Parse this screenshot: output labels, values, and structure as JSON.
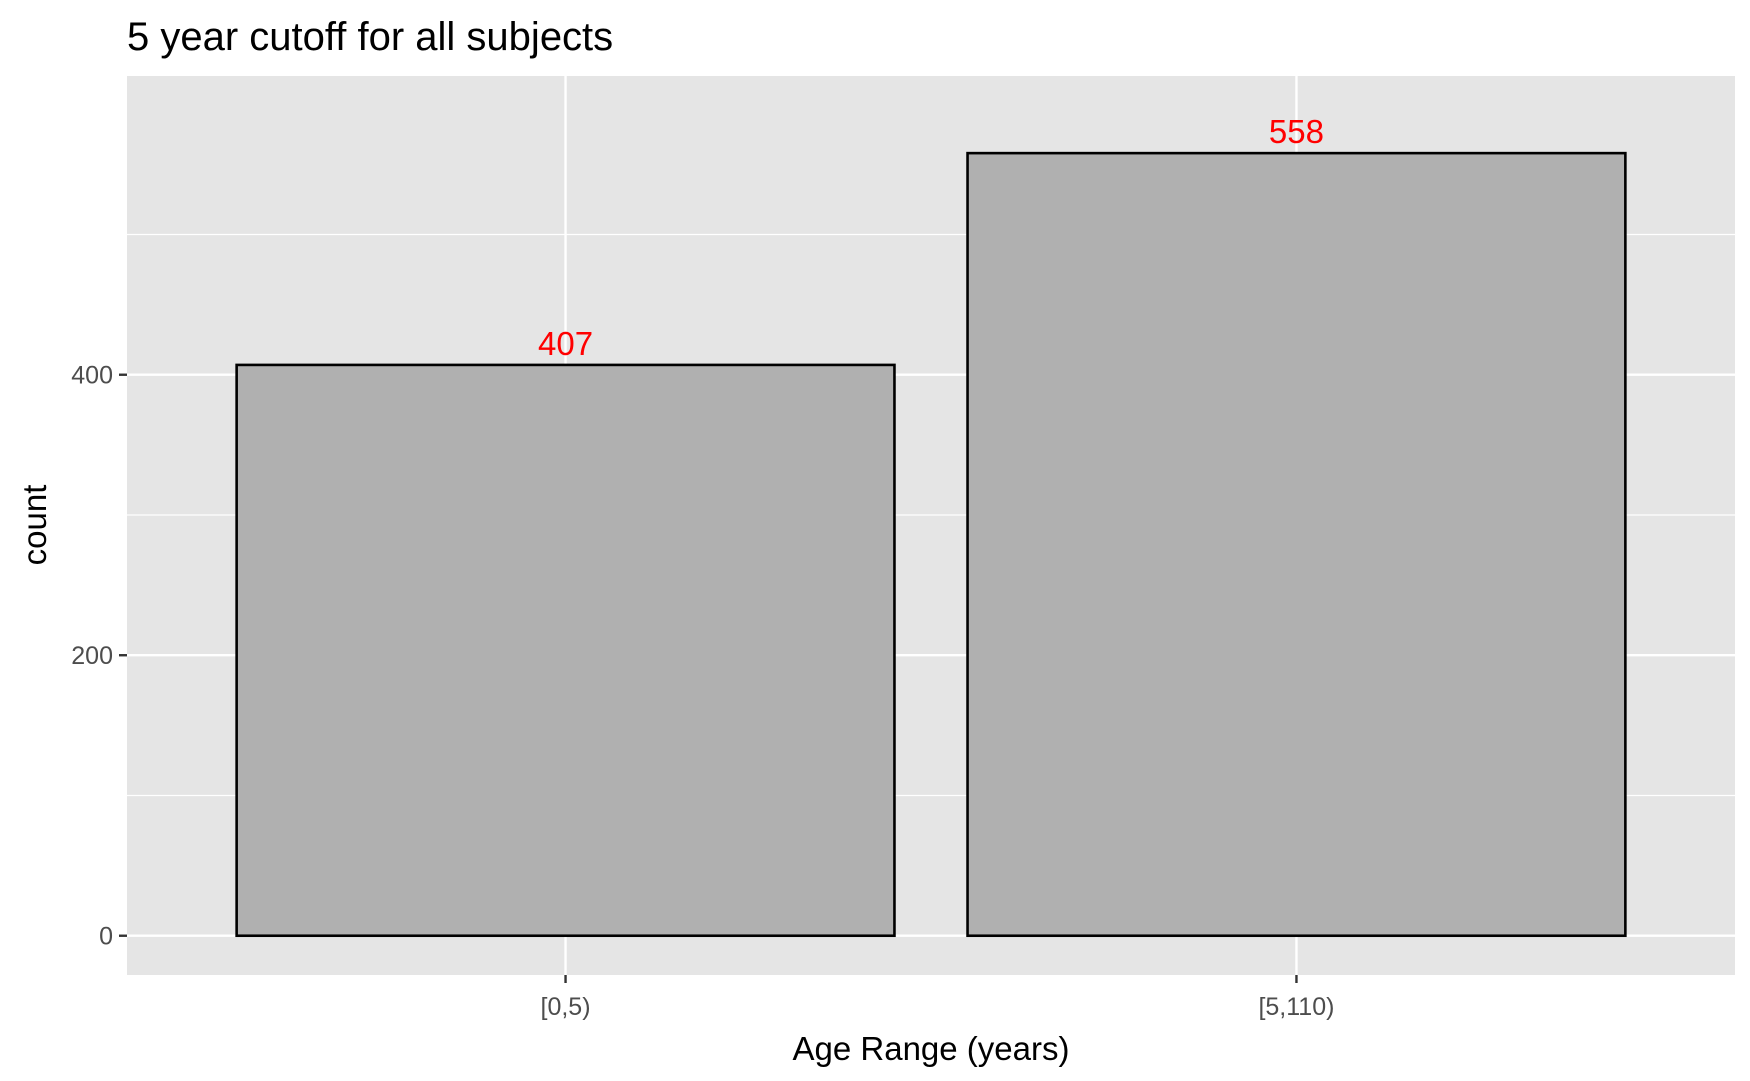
{
  "chart_data": {
    "type": "bar",
    "title": "5 year cutoff for all subjects",
    "xlabel": "Age Range (years)",
    "ylabel": "count",
    "categories": [
      "[0,5)",
      "[5,110)"
    ],
    "values": [
      407,
      558
    ],
    "value_labels": [
      "407",
      "558"
    ],
    "y_ticks": [
      0,
      200,
      400
    ],
    "y_tick_labels": [
      "0",
      "200",
      "400"
    ],
    "ylim": [
      -28,
      613
    ],
    "grid": true,
    "legend": "none",
    "colors": {
      "panel_background": "#e5e5e5",
      "grid": "#ffffff",
      "bar_fill": "#b0b0b0",
      "bar_outline": "#000000",
      "data_label": "#ff0000",
      "tick_label": "#4d4d4d",
      "tick_mark": "#333333"
    }
  }
}
